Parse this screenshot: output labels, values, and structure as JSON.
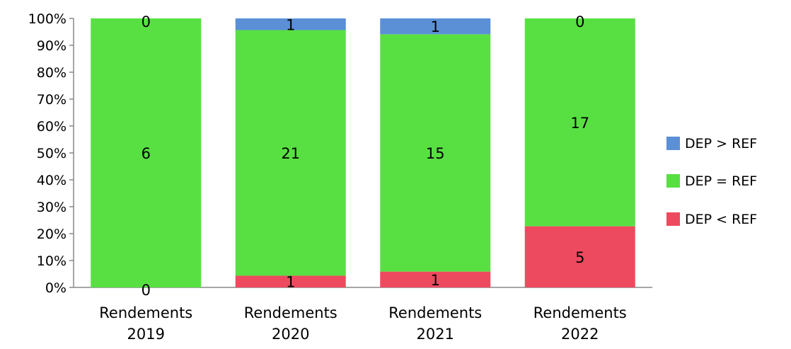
{
  "chart_data": {
    "type": "bar",
    "stacked": true,
    "percent_stacked": true,
    "categories": [
      [
        "Rendements",
        "2019"
      ],
      [
        "Rendements",
        "2020"
      ],
      [
        "Rendements",
        "2021"
      ],
      [
        "Rendements",
        "2022"
      ]
    ],
    "series": [
      {
        "name": "DEP < REF",
        "values": [
          0,
          1,
          1,
          5
        ],
        "color": "#ee4a5f"
      },
      {
        "name": "DEP = REF",
        "values": [
          6,
          21,
          15,
          17
        ],
        "color": "#58e043"
      },
      {
        "name": "DEP > REF",
        "values": [
          0,
          1,
          1,
          0
        ],
        "color": "#5b8fd6"
      }
    ],
    "legend_order": [
      "DEP > REF",
      "DEP = REF",
      "DEP < REF"
    ],
    "y_ticks": [
      "0%",
      "10%",
      "20%",
      "30%",
      "40%",
      "50%",
      "60%",
      "70%",
      "80%",
      "90%",
      "100%"
    ],
    "ylim": [
      0,
      100
    ],
    "grid": false,
    "legend_position": "right"
  }
}
